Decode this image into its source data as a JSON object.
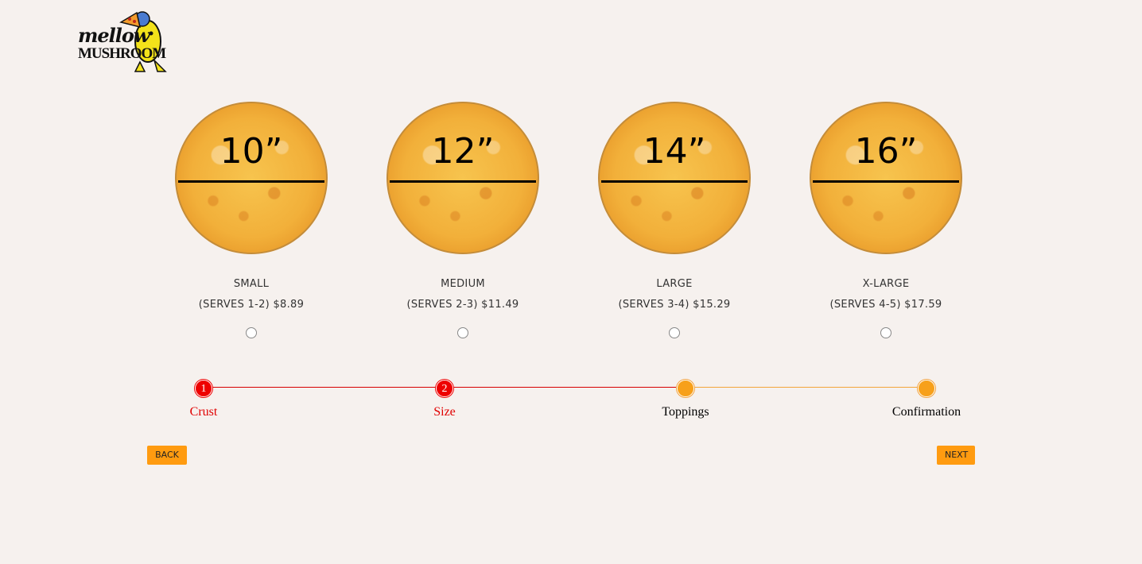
{
  "logo": {
    "line1": "mellow",
    "line2": "MUSHROOM"
  },
  "options": [
    {
      "inches": "10”",
      "name": "SMALL",
      "price": "(SERVES 1-2) $8.89"
    },
    {
      "inches": "12”",
      "name": "MEDIUM",
      "price": "(SERVES 2-3) $11.49"
    },
    {
      "inches": "14”",
      "name": "LARGE",
      "price": "(SERVES 3-4) $15.29"
    },
    {
      "inches": "16”",
      "name": "X-LARGE",
      "price": "(SERVES 4-5) $17.59"
    }
  ],
  "progress": {
    "steps": [
      {
        "number": "1",
        "label": "Crust",
        "status": "done"
      },
      {
        "number": "2",
        "label": "Size",
        "status": "done"
      },
      {
        "number": "",
        "label": "Toppings",
        "status": "todo"
      },
      {
        "number": "",
        "label": "Confirmation",
        "status": "todo"
      }
    ]
  },
  "buttons": {
    "back": "BACK",
    "next": "NEXT"
  },
  "colors": {
    "accent": "#ff9b10",
    "done": "#ee0000",
    "background": "#f6f1ee"
  }
}
